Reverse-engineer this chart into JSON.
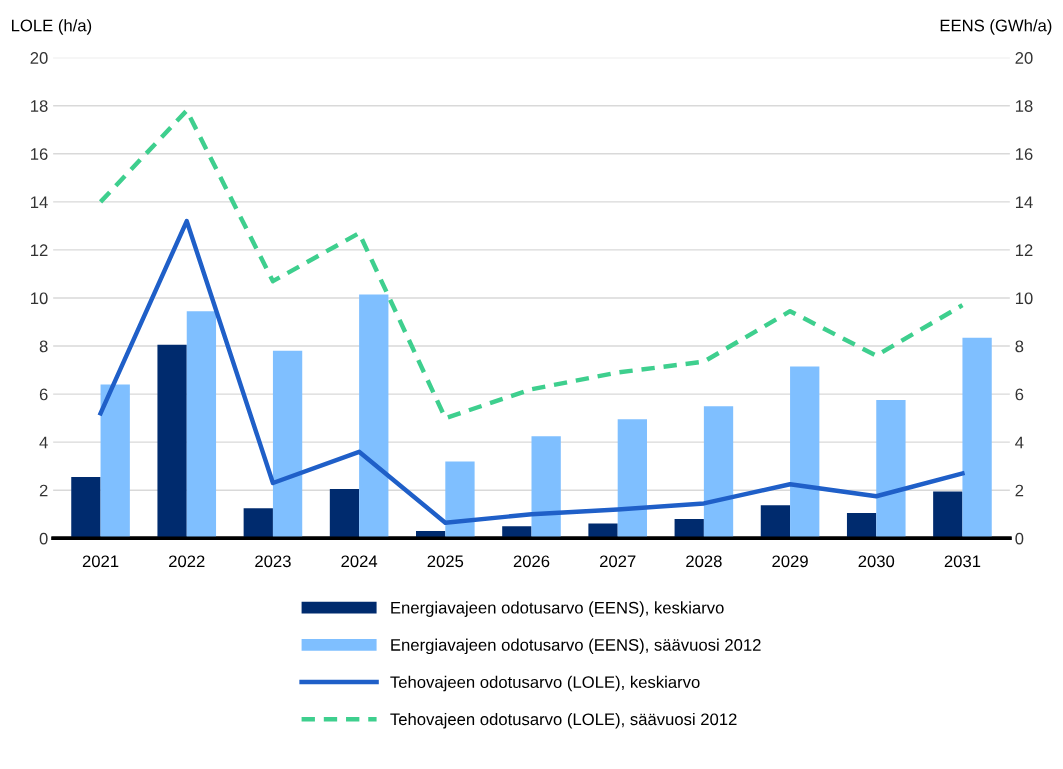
{
  "chart_data": {
    "type": "bar",
    "ylabel": "LOLE (h/a)",
    "y2label": "EENS (GWh/a)",
    "categories": [
      "2021",
      "2022",
      "2023",
      "2024",
      "2025",
      "2026",
      "2027",
      "2028",
      "2029",
      "2030",
      "2031"
    ],
    "series": [
      {
        "name": "Energiavajeen odotusarvo (EENS), keskiarvo",
        "axis": "y2",
        "color": "#002b6e",
        "values": [
          2.55,
          8.05,
          1.25,
          2.05,
          0.3,
          0.5,
          0.62,
          0.8,
          1.38,
          1.05,
          1.95
        ]
      },
      {
        "name": "Energiavajeen odotusarvo (EENS), säävuosi 2012",
        "axis": "y2",
        "color": "#7fbfff",
        "values": [
          6.4,
          9.45,
          7.8,
          10.15,
          3.2,
          4.25,
          4.95,
          5.5,
          7.15,
          5.75,
          8.35
        ]
      },
      {
        "name": "Tehovajeen odotusarvo (LOLE), keskiarvo",
        "type": "line",
        "axis": "y",
        "color": "#1f5fc8",
        "line_style": "solid",
        "values": [
          5.2,
          13.2,
          2.3,
          3.6,
          0.65,
          1.0,
          1.2,
          1.45,
          2.25,
          1.75,
          2.7
        ]
      },
      {
        "name": "Tehovajeen odotusarvo (LOLE), säävuosi 2012",
        "type": "line",
        "axis": "y",
        "color": "#3ecf8e",
        "line_style": "dashed",
        "values": [
          14.0,
          17.8,
          10.7,
          12.7,
          5.0,
          6.2,
          6.9,
          7.35,
          9.45,
          7.6,
          9.7
        ]
      }
    ],
    "ylim": [
      0,
      20
    ],
    "yticks": [
      0,
      2,
      4,
      6,
      8,
      10,
      12,
      14,
      16,
      18,
      20
    ],
    "y2lim": [
      0,
      20
    ],
    "y2ticks": [
      0,
      2,
      4,
      6,
      8,
      10,
      12,
      14,
      16,
      18,
      20
    ],
    "grid": "y",
    "legend": "bottom"
  }
}
